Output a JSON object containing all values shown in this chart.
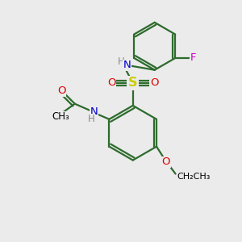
{
  "bg_color": "#ebebeb",
  "bond_color": "#2d6b2d",
  "bond_width": 1.6,
  "atom_colors": {
    "N": "#0000cc",
    "O": "#dd0000",
    "S": "#cccc00",
    "F": "#cc00cc",
    "H": "#888888",
    "C": "#000000"
  },
  "font_size": 9.5,
  "fig_bg": "#ebebeb"
}
